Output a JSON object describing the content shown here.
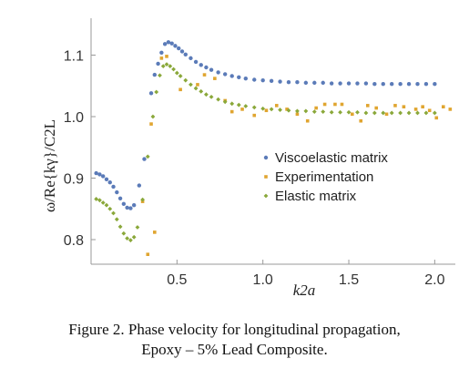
{
  "chart_data": {
    "type": "scatter",
    "xlabel": "k2a",
    "ylabel": "ω/Re{kγ}/C2L",
    "xlim": [
      0.0,
      2.12
    ],
    "ylim": [
      0.76,
      1.16
    ],
    "xticks": [
      {
        "value": 0.5,
        "label": "0.5"
      },
      {
        "value": 1.0,
        "label": "1.0"
      },
      {
        "value": 1.5,
        "label": "1.5"
      },
      {
        "value": 2.0,
        "label": "2.0"
      }
    ],
    "yticks": [
      {
        "value": 0.8,
        "label": "0.8"
      },
      {
        "value": 0.9,
        "label": "0.9"
      },
      {
        "value": 1.0,
        "label": "1.0"
      },
      {
        "value": 1.1,
        "label": "1.1"
      }
    ],
    "grid": false,
    "legend_position": "right-middle",
    "series": [
      {
        "name": "Viscoelastic matrix",
        "color": "#5b7bb8",
        "marker": "circle",
        "points": [
          [
            0.03,
            0.908
          ],
          [
            0.05,
            0.906
          ],
          [
            0.07,
            0.903
          ],
          [
            0.09,
            0.898
          ],
          [
            0.11,
            0.893
          ],
          [
            0.13,
            0.886
          ],
          [
            0.15,
            0.877
          ],
          [
            0.17,
            0.867
          ],
          [
            0.19,
            0.858
          ],
          [
            0.21,
            0.852
          ],
          [
            0.23,
            0.851
          ],
          [
            0.25,
            0.856
          ],
          [
            0.28,
            0.888
          ],
          [
            0.31,
            0.931
          ],
          [
            0.35,
            1.038
          ],
          [
            0.37,
            1.068
          ],
          [
            0.39,
            1.086
          ],
          [
            0.41,
            1.104
          ],
          [
            0.43,
            1.118
          ],
          [
            0.45,
            1.121
          ],
          [
            0.47,
            1.119
          ],
          [
            0.49,
            1.115
          ],
          [
            0.51,
            1.111
          ],
          [
            0.53,
            1.106
          ],
          [
            0.55,
            1.101
          ],
          [
            0.58,
            1.095
          ],
          [
            0.61,
            1.089
          ],
          [
            0.64,
            1.084
          ],
          [
            0.67,
            1.08
          ],
          [
            0.7,
            1.076
          ],
          [
            0.74,
            1.072
          ],
          [
            0.78,
            1.069
          ],
          [
            0.82,
            1.066
          ],
          [
            0.86,
            1.064
          ],
          [
            0.9,
            1.062
          ],
          [
            0.95,
            1.06
          ],
          [
            1.0,
            1.059
          ],
          [
            1.05,
            1.058
          ],
          [
            1.1,
            1.057
          ],
          [
            1.15,
            1.056
          ],
          [
            1.2,
            1.056
          ],
          [
            1.25,
            1.055
          ],
          [
            1.3,
            1.055
          ],
          [
            1.35,
            1.055
          ],
          [
            1.4,
            1.054
          ],
          [
            1.45,
            1.054
          ],
          [
            1.5,
            1.054
          ],
          [
            1.55,
            1.054
          ],
          [
            1.6,
            1.054
          ],
          [
            1.65,
            1.053
          ],
          [
            1.7,
            1.053
          ],
          [
            1.75,
            1.053
          ],
          [
            1.8,
            1.053
          ],
          [
            1.85,
            1.053
          ],
          [
            1.9,
            1.053
          ],
          [
            1.95,
            1.053
          ],
          [
            2.0,
            1.053
          ]
        ]
      },
      {
        "name": "Experimentation",
        "color": "#e0a530",
        "marker": "square",
        "points": [
          [
            0.3,
            0.862
          ],
          [
            0.33,
            0.776
          ],
          [
            0.35,
            0.988
          ],
          [
            0.37,
            0.812
          ],
          [
            0.41,
            1.095
          ],
          [
            0.44,
            1.098
          ],
          [
            0.52,
            1.044
          ],
          [
            0.62,
            1.052
          ],
          [
            0.66,
            1.068
          ],
          [
            0.72,
            1.062
          ],
          [
            0.78,
            1.026
          ],
          [
            0.82,
            1.008
          ],
          [
            0.88,
            1.012
          ],
          [
            0.95,
            1.002
          ],
          [
            1.02,
            1.01
          ],
          [
            1.08,
            1.018
          ],
          [
            1.14,
            1.012
          ],
          [
            1.2,
            1.004
          ],
          [
            1.26,
            0.993
          ],
          [
            1.31,
            1.014
          ],
          [
            1.36,
            1.02
          ],
          [
            1.42,
            1.02
          ],
          [
            1.46,
            1.02
          ],
          [
            1.52,
            1.004
          ],
          [
            1.57,
            0.993
          ],
          [
            1.61,
            1.018
          ],
          [
            1.66,
            1.014
          ],
          [
            1.72,
            1.004
          ],
          [
            1.77,
            1.018
          ],
          [
            1.82,
            1.016
          ],
          [
            1.89,
            1.012
          ],
          [
            1.93,
            1.016
          ],
          [
            1.97,
            1.01
          ],
          [
            2.01,
            0.998
          ],
          [
            2.05,
            1.016
          ],
          [
            2.09,
            1.012
          ]
        ]
      },
      {
        "name": "Elastic matrix",
        "color": "#8aa83a",
        "marker": "diamond",
        "points": [
          [
            0.03,
            0.866
          ],
          [
            0.05,
            0.864
          ],
          [
            0.07,
            0.86
          ],
          [
            0.09,
            0.856
          ],
          [
            0.11,
            0.85
          ],
          [
            0.13,
            0.843
          ],
          [
            0.15,
            0.833
          ],
          [
            0.17,
            0.821
          ],
          [
            0.19,
            0.81
          ],
          [
            0.21,
            0.802
          ],
          [
            0.23,
            0.799
          ],
          [
            0.25,
            0.804
          ],
          [
            0.27,
            0.82
          ],
          [
            0.3,
            0.865
          ],
          [
            0.33,
            0.935
          ],
          [
            0.36,
            1.0
          ],
          [
            0.38,
            1.04
          ],
          [
            0.4,
            1.067
          ],
          [
            0.42,
            1.082
          ],
          [
            0.44,
            1.085
          ],
          [
            0.46,
            1.082
          ],
          [
            0.48,
            1.077
          ],
          [
            0.5,
            1.071
          ],
          [
            0.52,
            1.066
          ],
          [
            0.55,
            1.059
          ],
          [
            0.58,
            1.052
          ],
          [
            0.61,
            1.046
          ],
          [
            0.64,
            1.041
          ],
          [
            0.67,
            1.036
          ],
          [
            0.7,
            1.032
          ],
          [
            0.74,
            1.028
          ],
          [
            0.78,
            1.024
          ],
          [
            0.82,
            1.021
          ],
          [
            0.86,
            1.019
          ],
          [
            0.9,
            1.017
          ],
          [
            0.95,
            1.015
          ],
          [
            1.0,
            1.013
          ],
          [
            1.05,
            1.012
          ],
          [
            1.1,
            1.011
          ],
          [
            1.15,
            1.01
          ],
          [
            1.2,
            1.009
          ],
          [
            1.25,
            1.009
          ],
          [
            1.3,
            1.008
          ],
          [
            1.35,
            1.008
          ],
          [
            1.4,
            1.007
          ],
          [
            1.45,
            1.007
          ],
          [
            1.5,
            1.007
          ],
          [
            1.55,
            1.007
          ],
          [
            1.6,
            1.006
          ],
          [
            1.65,
            1.006
          ],
          [
            1.7,
            1.006
          ],
          [
            1.75,
            1.006
          ],
          [
            1.8,
            1.006
          ],
          [
            1.85,
            1.006
          ],
          [
            1.9,
            1.006
          ],
          [
            1.95,
            1.006
          ],
          [
            2.0,
            1.006
          ]
        ]
      }
    ]
  },
  "caption": {
    "line1": "Figure 2. Phase velocity for longitudinal propagation,",
    "line2": "Epoxy – 5% Lead Composite."
  }
}
